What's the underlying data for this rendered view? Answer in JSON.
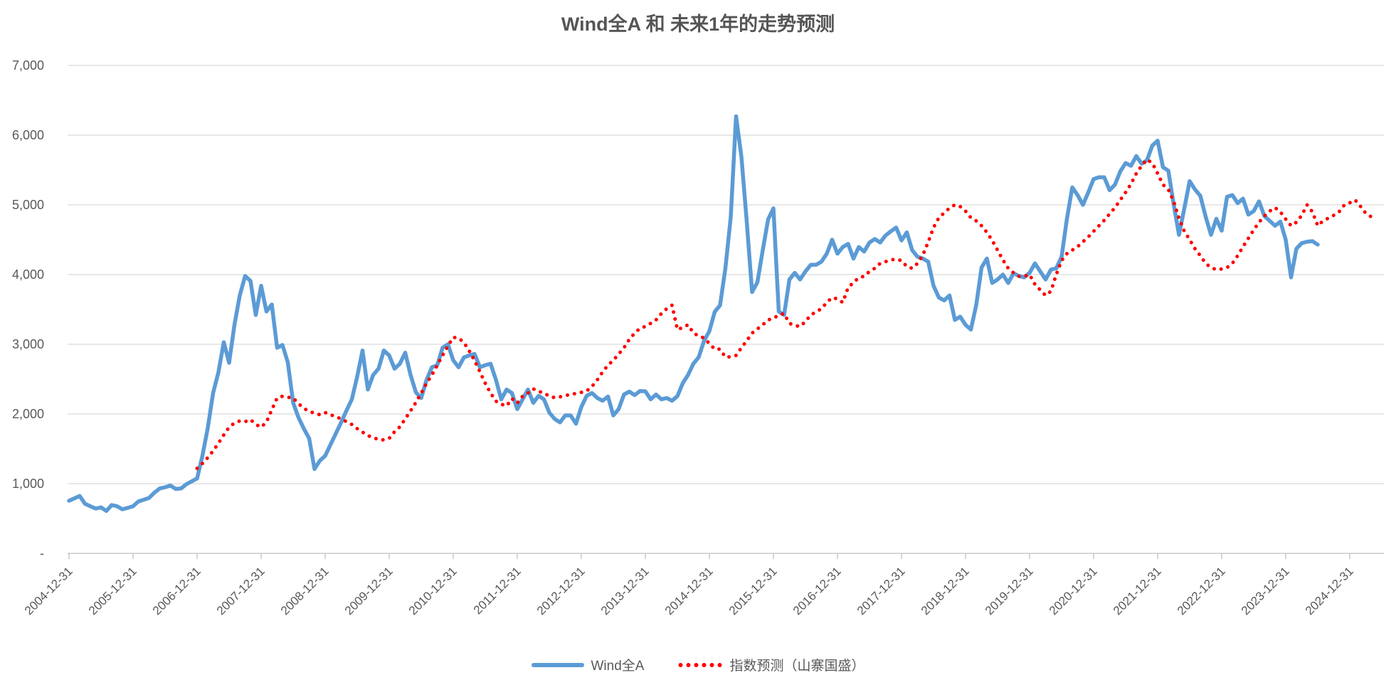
{
  "title": "Wind全A 和 未来1年的走势预测",
  "colors": {
    "series_actual": "#5B9BD5",
    "series_forecast": "#FF0000",
    "gridline": "#D9D9D9",
    "axis": "#BFBFBF",
    "text": "#595959",
    "title_text": "#555555",
    "background": "#FFFFFF"
  },
  "chart_data": {
    "type": "line",
    "title": "Wind全A 和 未来1年的走势预测",
    "grid": true,
    "legend_position": "bottom",
    "x_axis": {
      "frequency": "monthly",
      "first_month": "2004-12",
      "tick_labels": [
        "2004-12-31",
        "2005-12-31",
        "2006-12-31",
        "2007-12-31",
        "2008-12-31",
        "2009-12-31",
        "2010-12-31",
        "2011-12-31",
        "2012-12-31",
        "2013-12-31",
        "2014-12-31",
        "2015-12-31",
        "2016-12-31",
        "2017-12-31",
        "2018-12-31",
        "2019-12-31",
        "2020-12-31",
        "2021-12-31",
        "2022-12-31",
        "2023-12-31",
        "2024-12-31"
      ]
    },
    "y_axis": {
      "min": 0,
      "max": 7000,
      "tick_interval": 1000,
      "tick_labels": [
        "-",
        "1,000",
        "2,000",
        "3,000",
        "4,000",
        "5,000",
        "6,000",
        "7,000"
      ]
    },
    "series": [
      {
        "name": "Wind全A",
        "color": "#5B9BD5",
        "style": "solid",
        "start_month": "2004-12",
        "end_month": "2024-06",
        "values": [
          755,
          790,
          823,
          711,
          677,
          643,
          660,
          609,
          694,
          677,
          633,
          653,
          677,
          745,
          769,
          796,
          871,
          932,
          949,
          973,
          925,
          932,
          993,
          1034,
          1075,
          1400,
          1800,
          2300,
          2600,
          3030,
          2735,
          3280,
          3700,
          3980,
          3910,
          3420,
          3840,
          3470,
          3570,
          2950,
          2990,
          2740,
          2160,
          1950,
          1790,
          1650,
          1210,
          1330,
          1400,
          1560,
          1720,
          1880,
          2050,
          2210,
          2535,
          2910,
          2350,
          2560,
          2650,
          2910,
          2840,
          2650,
          2720,
          2880,
          2560,
          2310,
          2230,
          2490,
          2670,
          2700,
          2950,
          3000,
          2770,
          2670,
          2810,
          2840,
          2860,
          2670,
          2700,
          2720,
          2490,
          2210,
          2350,
          2300,
          2070,
          2210,
          2350,
          2160,
          2260,
          2210,
          2020,
          1930,
          1880,
          1980,
          1980,
          1860,
          2100,
          2260,
          2300,
          2230,
          2190,
          2250,
          1980,
          2070,
          2280,
          2320,
          2270,
          2330,
          2325,
          2210,
          2280,
          2210,
          2230,
          2190,
          2255,
          2440,
          2560,
          2720,
          2815,
          3050,
          3190,
          3465,
          3560,
          4090,
          4820,
          6270,
          5690,
          4760,
          3750,
          3890,
          4350,
          4790,
          4950,
          3470,
          3420,
          3930,
          4025,
          3930,
          4045,
          4140,
          4140,
          4185,
          4300,
          4500,
          4300,
          4395,
          4440,
          4230,
          4395,
          4330,
          4460,
          4510,
          4460,
          4560,
          4620,
          4675,
          4490,
          4605,
          4350,
          4255,
          4230,
          4185,
          3840,
          3670,
          3630,
          3700,
          3350,
          3395,
          3280,
          3210,
          3560,
          4100,
          4230,
          3880,
          3930,
          4000,
          3880,
          4020,
          3980,
          3960,
          4025,
          4160,
          4045,
          3930,
          4070,
          4090,
          4255,
          4800,
          5250,
          5140,
          5000,
          5180,
          5370,
          5395,
          5395,
          5210,
          5290,
          5480,
          5600,
          5560,
          5700,
          5590,
          5640,
          5850,
          5920,
          5540,
          5490,
          5010,
          4570,
          4950,
          5340,
          5220,
          5130,
          4830,
          4570,
          4800,
          4630,
          5115,
          5140,
          5025,
          5090,
          4860,
          4910,
          5050,
          4840,
          4770,
          4700,
          4760,
          4500,
          3960,
          4370,
          4450,
          4470,
          4480,
          4430
        ]
      },
      {
        "name": "指数预测（山寨国盛）",
        "color": "#FF0000",
        "style": "dotted",
        "start_month": "2006-12",
        "end_month": "2025-05",
        "values": [
          1220,
          1290,
          1375,
          1470,
          1580,
          1700,
          1810,
          1870,
          1900,
          1890,
          1920,
          1850,
          1810,
          1885,
          2060,
          2230,
          2255,
          2240,
          2230,
          2150,
          2080,
          2040,
          2010,
          1990,
          2020,
          1990,
          1960,
          1930,
          1890,
          1850,
          1790,
          1740,
          1690,
          1660,
          1635,
          1628,
          1650,
          1745,
          1815,
          1930,
          2045,
          2165,
          2300,
          2440,
          2560,
          2700,
          2840,
          2975,
          3100,
          3090,
          3025,
          2905,
          2765,
          2605,
          2440,
          2300,
          2185,
          2140,
          2115,
          2220,
          2155,
          2255,
          2300,
          2360,
          2325,
          2300,
          2255,
          2235,
          2245,
          2265,
          2280,
          2295,
          2310,
          2330,
          2395,
          2490,
          2605,
          2700,
          2770,
          2860,
          2950,
          3070,
          3160,
          3230,
          3255,
          3300,
          3350,
          3440,
          3510,
          3560,
          3210,
          3240,
          3280,
          3160,
          3120,
          3090,
          3010,
          2930,
          2930,
          2815,
          2820,
          2840,
          2950,
          3050,
          3160,
          3220,
          3280,
          3350,
          3370,
          3420,
          3440,
          3300,
          3270,
          3255,
          3325,
          3420,
          3465,
          3510,
          3600,
          3670,
          3650,
          3600,
          3815,
          3885,
          3955,
          3975,
          4045,
          4090,
          4160,
          4185,
          4210,
          4220,
          4200,
          4115,
          4090,
          4160,
          4280,
          4465,
          4675,
          4815,
          4885,
          4955,
          5000,
          4975,
          4910,
          4815,
          4770,
          4700,
          4605,
          4490,
          4350,
          4210,
          4090,
          4025,
          3975,
          3975,
          4000,
          3860,
          3780,
          3700,
          3760,
          4000,
          4200,
          4300,
          4350,
          4400,
          4470,
          4540,
          4620,
          4700,
          4780,
          4870,
          4960,
          5070,
          5180,
          5300,
          5450,
          5560,
          5650,
          5600,
          5450,
          5290,
          5220,
          5050,
          4810,
          4620,
          4500,
          4370,
          4270,
          4160,
          4100,
          4070,
          4080,
          4100,
          4160,
          4270,
          4400,
          4520,
          4640,
          4750,
          4840,
          4910,
          4960,
          4900,
          4795,
          4700,
          4750,
          4850,
          5000,
          4900,
          4700,
          4770,
          4810,
          4850,
          4900,
          5000,
          5030,
          5070,
          4980,
          4880,
          4830,
          4790
        ]
      }
    ]
  }
}
